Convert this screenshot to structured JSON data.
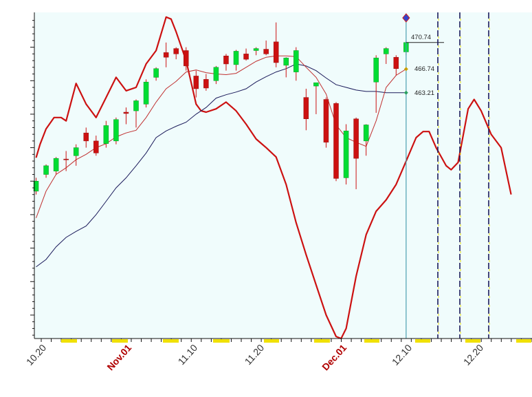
{
  "chart_data": {
    "type": "candlestick",
    "x_date_labels": [
      "10.20",
      "Nov.01",
      "11.10",
      "11.20",
      "Dec.01",
      "12.10",
      "12.20"
    ],
    "y_ticks": [
      430,
      435,
      440,
      445,
      450,
      455,
      460,
      465,
      470
    ],
    "ylim": [
      426.5,
      475.2
    ],
    "grid": false,
    "colors": {
      "plot_bg": "#f0fcfc",
      "up": "#00dd33",
      "down": "#cc1111",
      "cycle": "#cc1111",
      "ma_fast": "#c03030",
      "ma_slow": "#1a1a5a",
      "cursor": "#4aa0b0",
      "marker_slow": "#2aa060",
      "marker_fast": "#c8a000"
    },
    "annotations": {
      "last_close": "470.74",
      "ma_fast_last": "466.74",
      "ma_slow_last": "463.21"
    },
    "candles": [
      {
        "date": "10.19",
        "o": 448.5,
        "h": 450.5,
        "l": 448.0,
        "c": 450.0
      },
      {
        "date": "10.20",
        "o": 451.0,
        "h": 452.5,
        "l": 450.5,
        "c": 452.3
      },
      {
        "date": "10.21",
        "o": 451.5,
        "h": 453.6,
        "l": 451.0,
        "c": 453.4
      },
      {
        "date": "10.22",
        "o": 453.3,
        "h": 454.5,
        "l": 451.5,
        "c": 453.2
      },
      {
        "date": "10.25",
        "o": 453.8,
        "h": 455.5,
        "l": 452.3,
        "c": 455.0
      },
      {
        "date": "10.26",
        "o": 457.2,
        "h": 458.0,
        "l": 455.0,
        "c": 456.0
      },
      {
        "date": "10.27",
        "o": 456.0,
        "h": 456.8,
        "l": 453.8,
        "c": 454.2
      },
      {
        "date": "10.28",
        "o": 455.6,
        "h": 459.0,
        "l": 455.0,
        "c": 458.3
      },
      {
        "date": "10.29",
        "o": 456.0,
        "h": 459.5,
        "l": 455.5,
        "c": 459.2
      },
      {
        "date": "11.01",
        "o": 460.3,
        "h": 461.0,
        "l": 458.5,
        "c": 460.1
      },
      {
        "date": "11.02",
        "o": 460.5,
        "h": 462.2,
        "l": 458.0,
        "c": 462.0
      },
      {
        "date": "11.03",
        "o": 461.5,
        "h": 465.2,
        "l": 461.0,
        "c": 464.8
      },
      {
        "date": "11.04",
        "o": 465.5,
        "h": 467.0,
        "l": 465.0,
        "c": 466.8
      },
      {
        "date": "11.05",
        "o": 469.2,
        "h": 470.7,
        "l": 467.0,
        "c": 468.5
      },
      {
        "date": "11.08",
        "o": 469.8,
        "h": 470.0,
        "l": 468.2,
        "c": 469.0
      },
      {
        "date": "11.09",
        "o": 469.5,
        "h": 470.0,
        "l": 466.5,
        "c": 467.2
      },
      {
        "date": "11.10",
        "o": 465.7,
        "h": 466.5,
        "l": 462.5,
        "c": 463.8
      },
      {
        "date": "11.11",
        "o": 465.2,
        "h": 466.0,
        "l": 463.5,
        "c": 463.9
      },
      {
        "date": "11.12",
        "o": 465.0,
        "h": 467.2,
        "l": 464.5,
        "c": 467.0
      },
      {
        "date": "11.15",
        "o": 468.7,
        "h": 469.0,
        "l": 466.5,
        "c": 467.5
      },
      {
        "date": "11.16",
        "o": 467.4,
        "h": 469.6,
        "l": 466.5,
        "c": 469.4
      },
      {
        "date": "11.17",
        "o": 469.0,
        "h": 469.8,
        "l": 468.0,
        "c": 468.2
      },
      {
        "date": "11.18",
        "o": 469.5,
        "h": 470.0,
        "l": 468.8,
        "c": 469.8
      },
      {
        "date": "11.19",
        "o": 469.7,
        "h": 471.0,
        "l": 468.8,
        "c": 469.0
      },
      {
        "date": "11.22",
        "o": 470.8,
        "h": 473.7,
        "l": 467.0,
        "c": 467.7
      },
      {
        "date": "11.23",
        "o": 467.3,
        "h": 468.5,
        "l": 465.5,
        "c": 468.4
      },
      {
        "date": "11.24",
        "o": 466.3,
        "h": 470.0,
        "l": 465.0,
        "c": 469.5
      },
      {
        "date": "11.26",
        "o": 462.5,
        "h": 463.8,
        "l": 457.6,
        "c": 459.3
      },
      {
        "date": "11.29",
        "o": 464.2,
        "h": 464.5,
        "l": 460.0,
        "c": 464.7
      },
      {
        "date": "11.30",
        "o": 462.2,
        "h": 462.5,
        "l": 455.0,
        "c": 455.8
      },
      {
        "date": "12.01",
        "o": 461.6,
        "h": 461.8,
        "l": 450.0,
        "c": 450.4
      },
      {
        "date": "12.02",
        "o": 450.5,
        "h": 458.5,
        "l": 449.5,
        "c": 457.5
      },
      {
        "date": "12.03",
        "o": 459.3,
        "h": 459.5,
        "l": 448.8,
        "c": 453.4
      },
      {
        "date": "12.06",
        "o": 456.0,
        "h": 458.5,
        "l": 453.8,
        "c": 458.4
      },
      {
        "date": "12.07",
        "o": 464.8,
        "h": 468.8,
        "l": 460.2,
        "c": 468.4
      },
      {
        "date": "12.08",
        "o": 469.0,
        "h": 470.0,
        "l": 467.5,
        "c": 469.8
      },
      {
        "date": "12.09",
        "o": 468.5,
        "h": 468.8,
        "l": 465.8,
        "c": 466.8
      },
      {
        "date": "12.10",
        "o": 469.3,
        "h": 470.9,
        "l": 468.8,
        "c": 470.7
      }
    ],
    "ma_fast": [
      444.5,
      448.5,
      451.0,
      452.0,
      453.2,
      454.0,
      455.0,
      455.6,
      456.6,
      457.2,
      457.6,
      459.5,
      461.8,
      463.8,
      464.9,
      466.3,
      466.6,
      466.2,
      466.0,
      465.9,
      466.1,
      467.0,
      467.9,
      468.5,
      468.7,
      468.7,
      468.6,
      467.0,
      465.5,
      463.0,
      458.4,
      456.5,
      455.8,
      455.2,
      459.0,
      464.0,
      465.8,
      466.74
    ],
    "ma_slow": [
      437.2,
      438.3,
      440.2,
      441.6,
      442.5,
      443.3,
      445.0,
      447.0,
      449.0,
      450.5,
      452.3,
      454.2,
      456.5,
      457.5,
      458.2,
      458.8,
      460.0,
      461.0,
      462.4,
      462.9,
      463.3,
      463.8,
      464.8,
      465.6,
      466.3,
      466.8,
      467.5,
      467.2,
      466.5,
      465.4,
      464.4,
      464.0,
      463.6,
      463.4,
      463.4,
      463.2,
      463.2,
      463.21
    ],
    "cycle_curve": [
      {
        "t": 0.0,
        "y": 453.5
      },
      {
        "t": 0.4,
        "y": 455.5
      },
      {
        "t": 1.0,
        "y": 457.8
      },
      {
        "t": 1.8,
        "y": 459.5
      },
      {
        "t": 2.5,
        "y": 459.5
      },
      {
        "t": 3.0,
        "y": 459.0
      },
      {
        "t": 4.0,
        "y": 464.6
      },
      {
        "t": 5.0,
        "y": 461.5
      },
      {
        "t": 6.0,
        "y": 459.5
      },
      {
        "t": 7.0,
        "y": 462.5
      },
      {
        "t": 8.0,
        "y": 465.5
      },
      {
        "t": 9.0,
        "y": 463.5
      },
      {
        "t": 10.0,
        "y": 464.0
      },
      {
        "t": 11.0,
        "y": 467.5
      },
      {
        "t": 12.0,
        "y": 469.5
      },
      {
        "t": 13.0,
        "y": 474.5
      },
      {
        "t": 13.5,
        "y": 474.2
      },
      {
        "t": 14.0,
        "y": 472.3
      },
      {
        "t": 15.0,
        "y": 468.0
      },
      {
        "t": 16.0,
        "y": 461.5
      },
      {
        "t": 16.5,
        "y": 460.5
      },
      {
        "t": 17.0,
        "y": 460.3
      },
      {
        "t": 18.0,
        "y": 460.8
      },
      {
        "t": 19.0,
        "y": 461.8
      },
      {
        "t": 20.0,
        "y": 460.5
      },
      {
        "t": 21.0,
        "y": 458.5
      },
      {
        "t": 22.0,
        "y": 456.3
      },
      {
        "t": 23.0,
        "y": 455.0
      },
      {
        "t": 24.0,
        "y": 453.6
      },
      {
        "t": 25.0,
        "y": 449.5
      },
      {
        "t": 26.0,
        "y": 443.8
      },
      {
        "t": 27.0,
        "y": 439.0
      },
      {
        "t": 28.0,
        "y": 434.5
      },
      {
        "t": 29.0,
        "y": 430.0
      },
      {
        "t": 30.0,
        "y": 426.8
      },
      {
        "t": 30.5,
        "y": 426.5
      },
      {
        "t": 31.0,
        "y": 428.0
      },
      {
        "t": 32.0,
        "y": 435.8
      },
      {
        "t": 33.0,
        "y": 442.0
      },
      {
        "t": 34.0,
        "y": 445.5
      },
      {
        "t": 35.0,
        "y": 447.2
      },
      {
        "t": 36.0,
        "y": 449.5
      },
      {
        "t": 37.0,
        "y": 453.0
      },
      {
        "t": 38.0,
        "y": 456.5
      },
      {
        "t": 38.7,
        "y": 457.4
      },
      {
        "t": 39.3,
        "y": 457.4
      },
      {
        "t": 40.0,
        "y": 455.0
      },
      {
        "t": 41.0,
        "y": 452.3
      },
      {
        "t": 41.5,
        "y": 451.7
      },
      {
        "t": 42.2,
        "y": 452.8
      },
      {
        "t": 43.2,
        "y": 460.8
      },
      {
        "t": 43.8,
        "y": 462.2
      },
      {
        "t": 44.5,
        "y": 460.5
      },
      {
        "t": 45.5,
        "y": 457.0
      },
      {
        "t": 46.5,
        "y": 455.0
      },
      {
        "t": 47.5,
        "y": 448.0
      }
    ],
    "projection_markers": [
      "12.14",
      "12.16",
      "12.20"
    ]
  }
}
